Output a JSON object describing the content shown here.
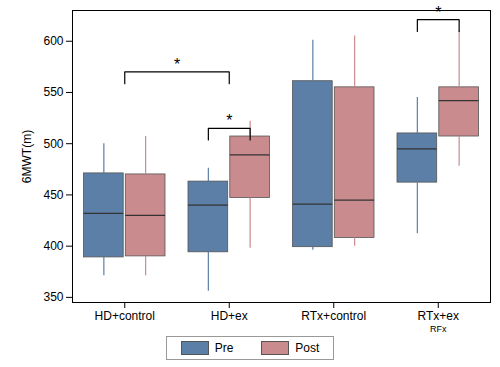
{
  "chart_data": {
    "type": "box",
    "ylabel": "6MWT(m)",
    "categories": [
      "HD+control",
      "HD+ex",
      "RTx+control",
      "RTx+ex"
    ],
    "series": [
      {
        "name": "Pre",
        "color": "#5b7fa6",
        "min": [
          371,
          356,
          396,
          412
        ],
        "q1": [
          389,
          394,
          399,
          462
        ],
        "median": [
          432,
          440,
          441,
          495
        ],
        "q3": [
          471,
          463,
          561,
          510
        ],
        "max": [
          500,
          476,
          601,
          545
        ]
      },
      {
        "name": "Post",
        "color": "#c98b8e",
        "min": [
          371,
          398,
          400,
          478
        ],
        "q1": [
          390,
          447,
          408,
          507
        ],
        "median": [
          430,
          489,
          445,
          542
        ],
        "q3": [
          470,
          507,
          555,
          555
        ],
        "max": [
          507,
          522,
          605,
          610
        ]
      }
    ],
    "ylim": [
      345,
      630
    ],
    "yticks": [
      350,
      400,
      450,
      500,
      550,
      600
    ],
    "grid": false,
    "legend": "bottom",
    "annotations": [
      {
        "text": "*",
        "from": {
          "category": "HD+control"
        },
        "to": {
          "category": "HD+ex"
        },
        "y": 570
      },
      {
        "text": "*",
        "from": {
          "category": "HD+ex",
          "series": "Pre"
        },
        "to": {
          "category": "HD+ex",
          "series": "Post"
        },
        "y": 515
      },
      {
        "text": "*",
        "from": {
          "category": "RTx+ex",
          "series": "Pre"
        },
        "to": {
          "category": "RTx+ex",
          "series": "Post"
        },
        "y": 621
      }
    ],
    "notes": [
      {
        "text": "RFx",
        "category": "RTx+ex"
      }
    ]
  }
}
